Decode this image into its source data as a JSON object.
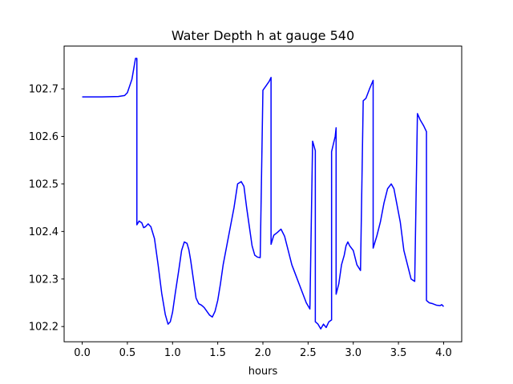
{
  "chart_data": {
    "type": "line",
    "title": "Water Depth h at gauge 540",
    "xlabel": "hours",
    "ylabel": "",
    "xlim": [
      -0.2,
      4.2
    ],
    "ylim": [
      102.168,
      102.79
    ],
    "xticks": [
      0.0,
      0.5,
      1.0,
      1.5,
      2.0,
      2.5,
      3.0,
      3.5,
      4.0
    ],
    "xtick_labels": [
      "0.0",
      "0.5",
      "1.0",
      "1.5",
      "2.0",
      "2.5",
      "3.0",
      "3.5",
      "4.0"
    ],
    "yticks": [
      102.2,
      102.3,
      102.4,
      102.5,
      102.6,
      102.7
    ],
    "ytick_labels": [
      "102.2",
      "102.3",
      "102.4",
      "102.5",
      "102.6",
      "102.7"
    ],
    "grid": false,
    "series": [
      {
        "color": "#0000ff",
        "x": [
          0.0,
          0.2,
          0.4,
          0.47,
          0.5,
          0.55,
          0.59,
          0.605,
          0.605,
          0.63,
          0.66,
          0.68,
          0.7,
          0.73,
          0.76,
          0.8,
          0.84,
          0.88,
          0.92,
          0.95,
          0.975,
          1.0,
          1.03,
          1.07,
          1.1,
          1.13,
          1.16,
          1.18,
          1.2,
          1.23,
          1.26,
          1.29,
          1.32,
          1.35,
          1.38,
          1.41,
          1.44,
          1.47,
          1.5,
          1.53,
          1.56,
          1.6,
          1.64,
          1.68,
          1.72,
          1.76,
          1.79,
          1.82,
          1.85,
          1.88,
          1.91,
          1.94,
          1.97,
          2.0,
          2.0,
          2.03,
          2.07,
          2.09,
          2.09,
          2.12,
          2.16,
          2.2,
          2.24,
          2.28,
          2.32,
          2.36,
          2.4,
          2.44,
          2.48,
          2.52,
          2.55,
          2.55,
          2.58,
          2.58,
          2.61,
          2.64,
          2.67,
          2.7,
          2.73,
          2.76,
          2.76,
          2.8,
          2.81,
          2.81,
          2.84,
          2.87,
          2.9,
          2.92,
          2.94,
          2.96,
          3.0,
          3.04,
          3.08,
          3.11,
          3.11,
          3.14,
          3.18,
          3.22,
          3.22,
          3.26,
          3.3,
          3.34,
          3.38,
          3.42,
          3.45,
          3.48,
          3.52,
          3.56,
          3.6,
          3.64,
          3.68,
          3.71,
          3.71,
          3.74,
          3.78,
          3.81,
          3.81,
          3.84,
          3.88,
          3.92,
          3.96,
          3.98,
          4.0
        ],
        "y": [
          102.683,
          102.683,
          102.684,
          102.686,
          102.692,
          102.72,
          102.764,
          102.764,
          102.414,
          102.422,
          102.418,
          102.408,
          102.41,
          102.416,
          102.41,
          102.385,
          102.33,
          102.27,
          102.225,
          102.205,
          102.21,
          102.23,
          102.27,
          102.32,
          102.36,
          102.378,
          102.375,
          102.362,
          102.34,
          102.3,
          102.26,
          102.248,
          102.245,
          102.24,
          102.232,
          102.224,
          102.22,
          102.232,
          102.255,
          102.29,
          102.33,
          102.37,
          102.41,
          102.45,
          102.5,
          102.505,
          102.495,
          102.45,
          102.41,
          102.37,
          102.35,
          102.346,
          102.345,
          102.697,
          102.697,
          102.705,
          102.716,
          102.724,
          102.373,
          102.392,
          102.398,
          102.405,
          102.39,
          102.36,
          102.33,
          102.31,
          102.29,
          102.27,
          102.25,
          102.237,
          102.59,
          102.59,
          102.57,
          102.21,
          102.205,
          102.195,
          102.205,
          102.198,
          102.21,
          102.214,
          102.568,
          102.6,
          102.618,
          102.268,
          102.29,
          102.33,
          102.35,
          102.37,
          102.378,
          102.37,
          102.36,
          102.33,
          102.318,
          102.675,
          102.675,
          102.68,
          102.7,
          102.718,
          102.365,
          102.39,
          102.42,
          102.46,
          102.49,
          102.5,
          102.49,
          102.46,
          102.42,
          102.36,
          102.33,
          102.3,
          102.295,
          102.648,
          102.648,
          102.635,
          102.622,
          102.61,
          102.255,
          102.25,
          102.248,
          102.245,
          102.244,
          102.246,
          102.242
        ]
      }
    ]
  }
}
